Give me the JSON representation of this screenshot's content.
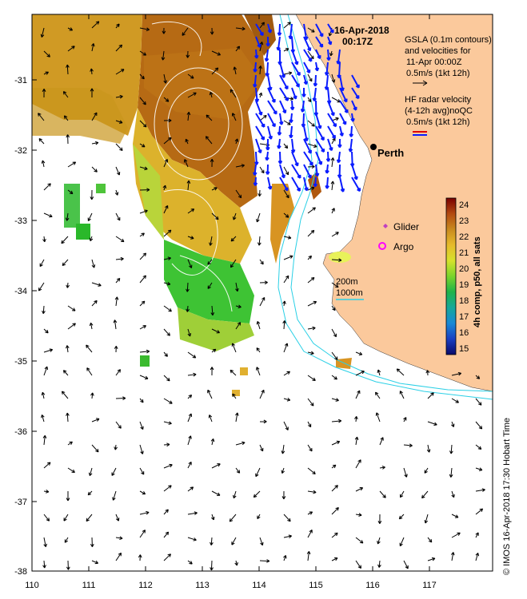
{
  "map": {
    "title_date": "16-Apr-2018",
    "title_time": "00:17Z",
    "gsla_legend": [
      "GSLA (0.1m contours)",
      "and velocities for",
      "11-Apr 00:00Z",
      "0.5m/s (1kt 12h)"
    ],
    "radar_legend": [
      "HF radar velocity",
      "(4-12h avg)noQC",
      "0.5m/s (1kt 12h)"
    ],
    "city_label": "Perth",
    "glider_label": "Glider",
    "argo_label": "Argo",
    "isobath_labels": [
      "200m",
      "1000m"
    ],
    "colorbar_label": "4h comp, p50, all sats",
    "colorbar_ticks": [
      "24",
      "23",
      "22",
      "21",
      "20",
      "19",
      "18",
      "17",
      "16",
      "15"
    ],
    "credit": "© IMOS 16-Apr-2018 17:30 Hobart Time",
    "x_ticks": [
      "110",
      "111",
      "112",
      "113",
      "114",
      "115",
      "116",
      "117"
    ],
    "y_ticks": [
      "-31",
      "-32",
      "-33",
      "-34",
      "-35",
      "-36",
      "-37",
      "-38"
    ],
    "colors": {
      "land": "#fbc99c",
      "velocity_radar": "#0a1cff",
      "isobath": "#2bd0e6",
      "sst_warm": "#b0660f",
      "sst_mid": "#e0b030",
      "sst_cool": "#2ab82a",
      "glider_marker": "#c040c0",
      "argo_marker": "#ff00ff"
    }
  }
}
